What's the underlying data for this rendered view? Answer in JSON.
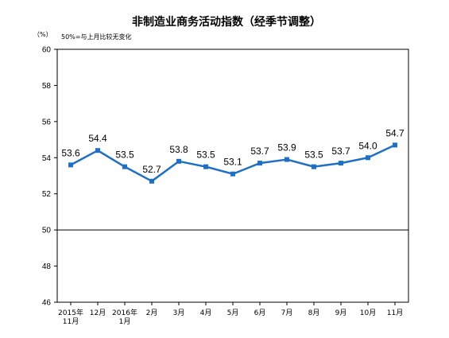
{
  "chart_data": {
    "type": "line",
    "title": "非制造业商务活动指数（经季节调整）",
    "ylabel": "（%）",
    "note": "50%=与上月比较无变化",
    "categories": [
      [
        "2015年",
        "11月"
      ],
      [
        "12月"
      ],
      [
        "2016年",
        "1月"
      ],
      [
        "2月"
      ],
      [
        "3月"
      ],
      [
        "4月"
      ],
      [
        "5月"
      ],
      [
        "6月"
      ],
      [
        "7月"
      ],
      [
        "8月"
      ],
      [
        "9月"
      ],
      [
        "10月"
      ],
      [
        "11月"
      ]
    ],
    "values": [
      53.6,
      54.4,
      53.5,
      52.7,
      53.8,
      53.5,
      53.1,
      53.7,
      53.9,
      53.5,
      53.7,
      54.0,
      54.7
    ],
    "value_labels": [
      "53.6",
      "54.4",
      "53.5",
      "52.7",
      "53.8",
      "53.5",
      "53.1",
      "53.7",
      "53.9",
      "53.5",
      "53.7",
      "54.0",
      "54.7"
    ],
    "ylim": [
      46,
      60
    ],
    "yticks": [
      46,
      48,
      50,
      52,
      54,
      56,
      58,
      60
    ],
    "reference_line": 50,
    "grid": false,
    "legend": "none",
    "colors": {
      "line": "#1f6fc5",
      "marker": "#1f6fc5",
      "axis": "#000000",
      "frame": "#000000"
    }
  }
}
